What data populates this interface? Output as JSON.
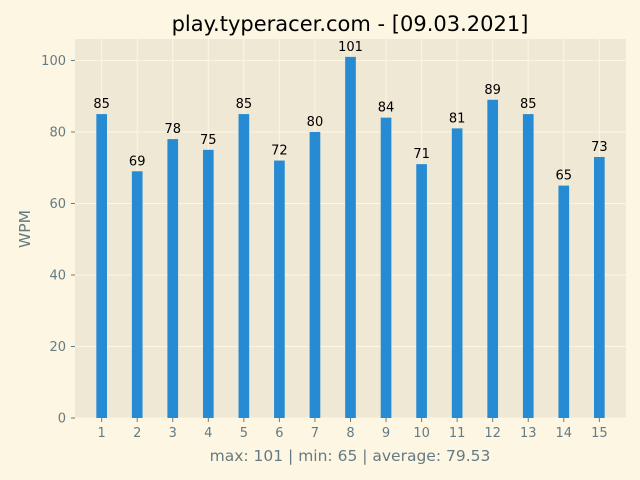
{
  "chart_data": {
    "type": "bar",
    "title": "play.typeracer.com     -     [09.03.2021]",
    "ylabel": "WPM",
    "xlabel": "max: 101   |   min: 65   |   average: 79.53",
    "categories": [
      "1",
      "2",
      "3",
      "4",
      "5",
      "6",
      "7",
      "8",
      "9",
      "10",
      "11",
      "12",
      "13",
      "14",
      "15"
    ],
    "values": [
      85,
      69,
      78,
      75,
      85,
      72,
      80,
      101,
      84,
      71,
      81,
      89,
      85,
      65,
      73
    ],
    "yticks": [
      0,
      20,
      40,
      60,
      80,
      100
    ],
    "ylim": [
      0,
      106
    ],
    "grid": true,
    "colors": {
      "bar": "#268bd2",
      "plot_bg": "#eee8d5",
      "page_bg": "#fdf6e3",
      "grid": "#fdf6e3",
      "tick_text": "#657b83"
    }
  }
}
